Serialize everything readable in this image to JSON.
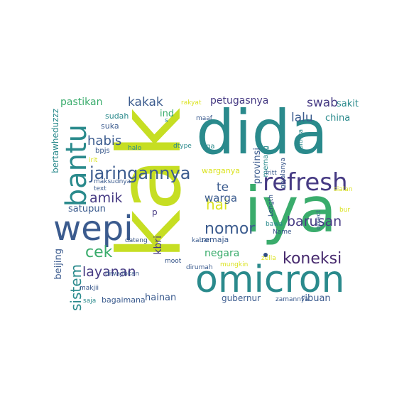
{
  "palette": {
    "lime": "#c6de23",
    "teal": "#2a8a8c",
    "blue": "#3b5b8e",
    "indigo": "#463a83",
    "purple": "#472a6e",
    "green": "#3aac6c",
    "lgreen": "#6ccc55",
    "yellow": "#dbe31f",
    "navy": "#2f4e84"
  },
  "words": [
    {
      "text": "kak"
    },
    {
      "text": "dida"
    },
    {
      "text": "iya"
    },
    {
      "text": "omicron"
    },
    {
      "text": "wepi"
    },
    {
      "text": "bantu"
    },
    {
      "text": "refresh"
    },
    {
      "text": "jaringannya"
    },
    {
      "text": "nomor"
    },
    {
      "text": "koneksi"
    },
    {
      "text": "sistem"
    },
    {
      "text": "barusan"
    },
    {
      "text": "layanan"
    },
    {
      "text": "amik"
    },
    {
      "text": "cek"
    },
    {
      "text": "habis"
    },
    {
      "text": "kakak"
    },
    {
      "text": "petugasnya"
    },
    {
      "text": "swab"
    },
    {
      "text": "hai"
    },
    {
      "text": "te"
    },
    {
      "text": "warga"
    },
    {
      "text": "lalu"
    },
    {
      "text": "negara"
    },
    {
      "text": "pastikan"
    },
    {
      "text": "sakit"
    },
    {
      "text": "china"
    },
    {
      "text": "provinsi"
    },
    {
      "text": "kbri"
    },
    {
      "text": "beijing"
    },
    {
      "text": "hainan"
    },
    {
      "text": "ribuan"
    },
    {
      "text": "gubernur"
    },
    {
      "text": "bagaimana"
    },
    {
      "text": "satupun"
    },
    {
      "text": "bertawheduzzz"
    },
    {
      "text": "remaja"
    },
    {
      "text": "warganya"
    },
    {
      "text": "sudah"
    },
    {
      "text": "suka"
    },
    {
      "text": "bpjs"
    },
    {
      "text": "ind"
    },
    {
      "text": "maaf"
    },
    {
      "text": "rakyat"
    },
    {
      "text": "memang"
    },
    {
      "text": "duitnya"
    },
    {
      "text": "gejalanya"
    },
    {
      "text": "iritt"
    },
    {
      "text": "sialan"
    },
    {
      "text": "bur"
    },
    {
      "text": "Length"
    },
    {
      "text": "bawa"
    },
    {
      "text": "Name"
    },
    {
      "text": "object"
    },
    {
      "text": "maksudnya"
    },
    {
      "text": "text"
    },
    {
      "text": "dateng"
    },
    {
      "text": "kabar"
    },
    {
      "text": "moot"
    },
    {
      "text": "dirumah"
    },
    {
      "text": "diwajibkan"
    },
    {
      "text": "makjii"
    },
    {
      "text": "saja"
    },
    {
      "text": "mungkin"
    },
    {
      "text": "zella"
    },
    {
      "text": "zamannya"
    },
    {
      "text": "halo"
    },
    {
      "text": "irit"
    },
    {
      "text": "dtype"
    },
    {
      "text": "ga"
    },
    {
      "text": "p"
    },
    {
      "text": "s"
    }
  ]
}
